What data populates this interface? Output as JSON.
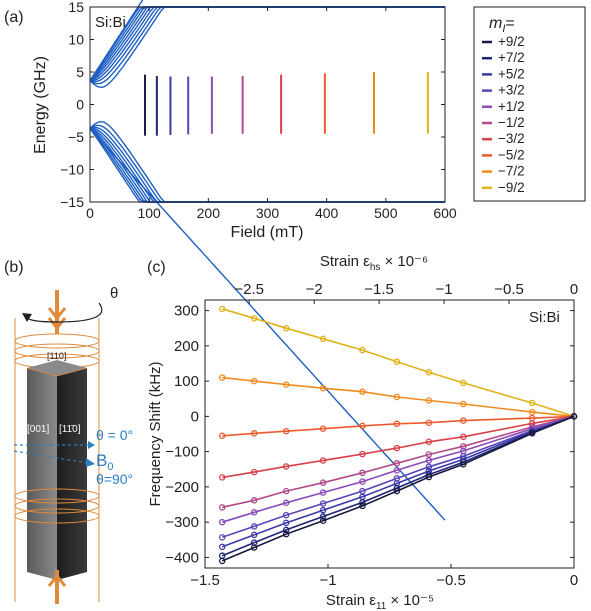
{
  "panels": {
    "a": {
      "label": "(a)",
      "tag": "Si:Bi",
      "xlabel": "Field (mT)",
      "ylabel": "Energy (GHz)",
      "xticks": [
        "0",
        "100",
        "200",
        "300",
        "400",
        "500",
        "600"
      ],
      "yticks": [
        "15",
        "10",
        "5",
        "0",
        "−5",
        "−10",
        "−15"
      ],
      "legend_title": "m",
      "legend_sub": "I",
      "legend_eq": "=",
      "legend": [
        {
          "label": "+9/2",
          "color": "#1a1a40"
        },
        {
          "label": "+7/2",
          "color": "#1f2575"
        },
        {
          "label": "+5/2",
          "color": "#3a3aa8"
        },
        {
          "label": "+3/2",
          "color": "#5a44b8"
        },
        {
          "label": "+1/2",
          "color": "#8a4ab8"
        },
        {
          "label": "−1/2",
          "color": "#b04a8a"
        },
        {
          "label": "−3/2",
          "color": "#d8404a"
        },
        {
          "label": "−5/2",
          "color": "#ec5a2e"
        },
        {
          "label": "−7/2",
          "color": "#f08a1e"
        },
        {
          "label": "−9/2",
          "color": "#e2b21a"
        }
      ]
    },
    "b": {
      "label": "(b)",
      "theta": "θ",
      "dir110": "[110]",
      "dir001": "[001]",
      "dir1m10": "[11̄0]",
      "theta0": "θ = 0°",
      "B0": "B",
      "B0sub": "0",
      "theta90": "θ=90°"
    },
    "c": {
      "label": "(c)",
      "tag": "Si:Bi",
      "top_label": "Strain ε",
      "top_label_sub": "hs",
      "top_label_exp": "× 10⁻⁶",
      "bottom_label": "Strain ε",
      "bottom_label_sub": "11",
      "bottom_label_exp": "× 10⁻⁵",
      "ylabel": "Frequency Shift (kHz)",
      "xticks": [
        "−1.5",
        "−1",
        "−0.5",
        "0"
      ],
      "top_xticks": [
        "−2.5",
        "−2",
        "−1.5",
        "−1",
        "−0.5",
        "0"
      ],
      "yticks": [
        "300",
        "200",
        "100",
        "0",
        "−100",
        "−200",
        "−300",
        "−400"
      ]
    }
  },
  "chart_data": [
    {
      "type": "line",
      "title": "Si:Bi",
      "xlabel": "Field (mT)",
      "ylabel": "Energy (GHz)",
      "xlim": [
        0,
        600
      ],
      "ylim": [
        -15,
        15
      ],
      "transitions": [
        {
          "m_I": "+9/2",
          "field": 93,
          "E_low": -4.8,
          "E_high": 4.6
        },
        {
          "m_I": "+7/2",
          "field": 113,
          "E_low": -4.8,
          "E_high": 4.4
        },
        {
          "m_I": "+5/2",
          "field": 136,
          "E_low": -4.7,
          "E_high": 4.3
        },
        {
          "m_I": "+3/2",
          "field": 166,
          "E_low": -4.6,
          "E_high": 4.3
        },
        {
          "m_I": "+1/2",
          "field": 206,
          "E_low": -4.5,
          "E_high": 4.3
        },
        {
          "m_I": "−1/2",
          "field": 258,
          "E_low": -4.5,
          "E_high": 4.4
        },
        {
          "m_I": "−3/2",
          "field": 323,
          "E_low": -4.5,
          "E_high": 4.6
        },
        {
          "m_I": "−5/2",
          "field": 397,
          "E_low": -4.5,
          "E_high": 4.8
        },
        {
          "m_I": "−7/2",
          "field": 480,
          "E_low": -4.5,
          "E_high": 5.0
        },
        {
          "m_I": "−9/2",
          "field": 571,
          "E_low": -4.5,
          "E_high": 5.0
        }
      ]
    },
    {
      "type": "line",
      "title": "Si:Bi",
      "xlabel": "Strain ε11 × 10⁻⁵",
      "ylabel": "Frequency Shift (kHz)",
      "xlim": [
        -1.5,
        0
      ],
      "ylim": [
        -430,
        330
      ],
      "x": [
        -1.43,
        -1.3,
        -1.17,
        -1.02,
        -0.86,
        -0.72,
        -0.59,
        -0.45,
        -0.17,
        0
      ],
      "series": [
        {
          "name": "−9/2",
          "color": "#e2b21a",
          "values": [
            305,
            278,
            250,
            220,
            188,
            155,
            125,
            95,
            38,
            0
          ]
        },
        {
          "name": "−7/2",
          "color": "#f08a1e",
          "values": [
            110,
            100,
            90,
            80,
            70,
            55,
            45,
            35,
            12,
            0
          ]
        },
        {
          "name": "−5/2",
          "color": "#ec5a2e",
          "values": [
            -55,
            -48,
            -42,
            -35,
            -27,
            -21,
            -18,
            -12,
            -5,
            0
          ]
        },
        {
          "name": "−3/2",
          "color": "#d8404a",
          "values": [
            -173,
            -158,
            -142,
            -125,
            -107,
            -90,
            -72,
            -58,
            -20,
            0
          ]
        },
        {
          "name": "−1/2",
          "color": "#b04a8a",
          "values": [
            -258,
            -238,
            -212,
            -188,
            -160,
            -133,
            -108,
            -85,
            -30,
            0
          ]
        },
        {
          "name": "+1/2",
          "color": "#8a4ab8",
          "values": [
            -300,
            -272,
            -245,
            -216,
            -185,
            -153,
            -125,
            -98,
            -35,
            0
          ]
        },
        {
          "name": "+3/2",
          "color": "#5a44b8",
          "values": [
            -343,
            -312,
            -280,
            -247,
            -212,
            -176,
            -143,
            -113,
            -40,
            0
          ]
        },
        {
          "name": "+5/2",
          "color": "#3a3aa8",
          "values": [
            -370,
            -336,
            -302,
            -266,
            -228,
            -190,
            -155,
            -122,
            -43,
            0
          ]
        },
        {
          "name": "+7/2",
          "color": "#1f2575",
          "values": [
            -395,
            -358,
            -322,
            -284,
            -244,
            -203,
            -165,
            -130,
            -46,
            0
          ]
        },
        {
          "name": "+9/2",
          "color": "#1a1a40",
          "values": [
            -410,
            -372,
            -334,
            -296,
            -254,
            -212,
            -172,
            -136,
            -48,
            0
          ]
        }
      ]
    }
  ]
}
